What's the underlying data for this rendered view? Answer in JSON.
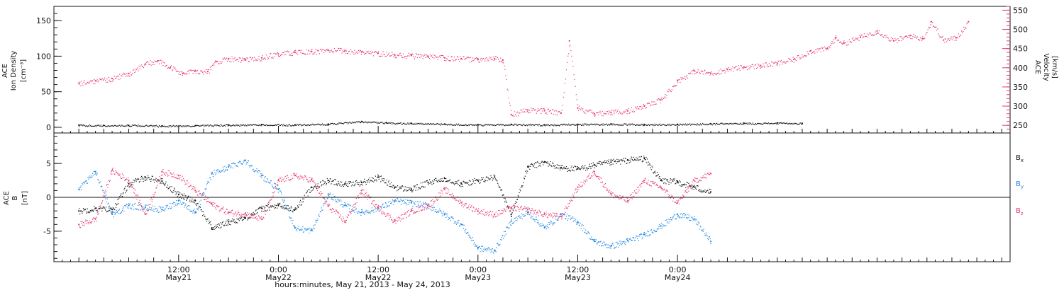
{
  "colors": {
    "black": "#111111",
    "pink": "#e8396c",
    "blue": "#1f86e0",
    "frame": "#111111"
  },
  "chart_data": [
    {
      "type": "scatter",
      "title": "",
      "ylabel_lines": [
        "ACE",
        "Ion Density",
        "[cm⁻³]"
      ],
      "y2label_lines": [
        "ACE",
        "Velocity",
        "[km/s]"
      ],
      "ylim": [
        -8,
        170
      ],
      "y_ticks": [
        0,
        50,
        100,
        150
      ],
      "y2lim": [
        230,
        560
      ],
      "y2_ticks": [
        250,
        300,
        350,
        400,
        450,
        500,
        550
      ],
      "xlim_hours": [
        -3,
        112
      ],
      "grid": false,
      "series": [
        {
          "name": "",
          "axis": "left",
          "color_key": "black",
          "points": [
            [
              0,
              3
            ],
            [
              3,
              2.5
            ],
            [
              6,
              2.8
            ],
            [
              10,
              2
            ],
            [
              14,
              2.4
            ],
            [
              18,
              3.2
            ],
            [
              22,
              3.8
            ],
            [
              26,
              3.5
            ],
            [
              30,
              4.6
            ],
            [
              34,
              8
            ],
            [
              37,
              6.5
            ],
            [
              40,
              5.5
            ],
            [
              44,
              4.6
            ],
            [
              48,
              3.5
            ],
            [
              52,
              4.2
            ],
            [
              56,
              3.6
            ],
            [
              60,
              4.2
            ],
            [
              64,
              4.6
            ],
            [
              68,
              4
            ],
            [
              72,
              4.2
            ],
            [
              76,
              5
            ],
            [
              80,
              5.6
            ],
            [
              84,
              6
            ],
            [
              87,
              5.5
            ]
          ]
        },
        {
          "name": "",
          "axis": "right",
          "color_key": "pink",
          "points": [
            [
              0,
              360
            ],
            [
              2,
              366
            ],
            [
              4,
              372
            ],
            [
              6,
              385
            ],
            [
              8,
              410
            ],
            [
              9.5,
              418
            ],
            [
              11,
              400
            ],
            [
              12.5,
              385
            ],
            [
              14,
              392
            ],
            [
              15.5,
              390
            ],
            [
              16.5,
              416
            ],
            [
              18,
              424
            ],
            [
              20,
              420
            ],
            [
              22,
              426
            ],
            [
              24,
              436
            ],
            [
              26,
              440
            ],
            [
              28,
              442
            ],
            [
              30,
              446
            ],
            [
              32,
              444
            ],
            [
              34,
              441
            ],
            [
              36,
              438
            ],
            [
              38,
              433
            ],
            [
              40,
              432
            ],
            [
              42,
              429
            ],
            [
              44,
              426
            ],
            [
              46,
              424
            ],
            [
              48,
              421
            ],
            [
              50,
              424
            ],
            [
              51,
              420
            ],
            [
              52,
              278
            ],
            [
              54,
              290
            ],
            [
              56,
              288
            ],
            [
              58,
              282
            ],
            [
              59,
              470
            ],
            [
              60,
              295
            ],
            [
              62,
              280
            ],
            [
              64,
              284
            ],
            [
              66,
              288
            ],
            [
              68,
              300
            ],
            [
              70,
              316
            ],
            [
              72,
              366
            ],
            [
              74,
              392
            ],
            [
              76,
              386
            ],
            [
              78,
              396
            ],
            [
              80,
              402
            ],
            [
              82,
              406
            ],
            [
              84,
              412
            ],
            [
              86,
              422
            ],
            [
              88,
              444
            ],
            [
              90,
              450
            ],
            [
              91,
              478
            ],
            [
              92,
              464
            ],
            [
              94,
              480
            ],
            [
              96,
              496
            ],
            [
              98,
              470
            ],
            [
              100,
              484
            ],
            [
              101.5,
              476
            ],
            [
              102.5,
              520
            ],
            [
              104,
              472
            ],
            [
              105.5,
              478
            ],
            [
              107,
              520
            ]
          ]
        }
      ]
    },
    {
      "type": "scatter",
      "title": "",
      "ylabel_lines": [
        "ACE",
        "B",
        "[nT]"
      ],
      "ylim": [
        -9.5,
        9.5
      ],
      "y_ticks": [
        -5,
        0,
        5
      ],
      "xlim_hours": [
        -3,
        112
      ],
      "grid": false,
      "zero_line": true,
      "xlabel": "hours:minutes, May 21, 2013 - May 24, 2013",
      "x_ticks": [
        {
          "hour": 12,
          "label": "12:00",
          "date": "May21"
        },
        {
          "hour": 24,
          "label": "0:00",
          "date": "May22"
        },
        {
          "hour": 36,
          "label": "12:00",
          "date": "May22"
        },
        {
          "hour": 48,
          "label": "0:00",
          "date": "May23"
        },
        {
          "hour": 60,
          "label": "12:00",
          "date": "May23"
        },
        {
          "hour": 72,
          "label": "0:00",
          "date": "May24"
        }
      ],
      "series": [
        {
          "name": "Bx",
          "sub": "x",
          "color_key": "black",
          "points": [
            [
              0,
              -2
            ],
            [
              2,
              -1.6
            ],
            [
              4,
              -1.8
            ],
            [
              6,
              2
            ],
            [
              8,
              3
            ],
            [
              10,
              2.4
            ],
            [
              12,
              0.4
            ],
            [
              14,
              -0.5
            ],
            [
              16,
              -4.5
            ],
            [
              18,
              -3.6
            ],
            [
              20,
              -3
            ],
            [
              22,
              -1.6
            ],
            [
              24,
              -1.2
            ],
            [
              26,
              -1.8
            ],
            [
              28,
              1.5
            ],
            [
              30,
              2.5
            ],
            [
              32,
              2
            ],
            [
              34,
              2.2
            ],
            [
              36,
              3
            ],
            [
              38,
              1.5
            ],
            [
              40,
              1.2
            ],
            [
              42,
              2.2
            ],
            [
              44,
              2.8
            ],
            [
              46,
              2
            ],
            [
              48,
              2.5
            ],
            [
              50,
              3
            ],
            [
              52,
              -2.5
            ],
            [
              54,
              4.5
            ],
            [
              56,
              5.2
            ],
            [
              58,
              4.4
            ],
            [
              60,
              4.2
            ],
            [
              62,
              4.8
            ],
            [
              64,
              5.2
            ],
            [
              66,
              5.5
            ],
            [
              68,
              5.8
            ],
            [
              70,
              2.5
            ],
            [
              72,
              2.3
            ],
            [
              74,
              1.5
            ],
            [
              76,
              0.8
            ]
          ]
        },
        {
          "name": "By",
          "sub": "y",
          "color_key": "blue",
          "points": [
            [
              0,
              1.2
            ],
            [
              2,
              3.8
            ],
            [
              4,
              -2.5
            ],
            [
              6,
              -1.2
            ],
            [
              8,
              -1.5
            ],
            [
              10,
              -1.8
            ],
            [
              12,
              -0.5
            ],
            [
              14,
              -2.2
            ],
            [
              16,
              3.5
            ],
            [
              18,
              4.5
            ],
            [
              20,
              5.5
            ],
            [
              22,
              3.2
            ],
            [
              24,
              1.2
            ],
            [
              26,
              -4.5
            ],
            [
              28,
              -4.9
            ],
            [
              30,
              0.5
            ],
            [
              32,
              -1.2
            ],
            [
              34,
              -2.2
            ],
            [
              36,
              -1.6
            ],
            [
              38,
              -0.5
            ],
            [
              40,
              -0.8
            ],
            [
              42,
              -1.2
            ],
            [
              44,
              -2.5
            ],
            [
              46,
              -4
            ],
            [
              48,
              -7.5
            ],
            [
              50,
              -7.8
            ],
            [
              52,
              -3.5
            ],
            [
              54,
              -2.2
            ],
            [
              56,
              -4.5
            ],
            [
              58,
              -2.5
            ],
            [
              60,
              -3.6
            ],
            [
              62,
              -6.5
            ],
            [
              64,
              -7.2
            ],
            [
              66,
              -6.4
            ],
            [
              68,
              -5.5
            ],
            [
              70,
              -4.2
            ],
            [
              72,
              -2.5
            ],
            [
              74,
              -3.2
            ],
            [
              76,
              -6.5
            ]
          ]
        },
        {
          "name": "Bz",
          "sub": "z",
          "color_key": "pink",
          "points": [
            [
              0,
              -4
            ],
            [
              2,
              -3.2
            ],
            [
              4,
              4
            ],
            [
              6,
              2.5
            ],
            [
              8,
              -2.5
            ],
            [
              10,
              3.8
            ],
            [
              12,
              3.2
            ],
            [
              14,
              1
            ],
            [
              16,
              -1
            ],
            [
              18,
              -2.2
            ],
            [
              20,
              -2.4
            ],
            [
              22,
              -3.2
            ],
            [
              24,
              2.5
            ],
            [
              26,
              3.2
            ],
            [
              28,
              2.6
            ],
            [
              30,
              -1.3
            ],
            [
              32,
              -3.5
            ],
            [
              34,
              1
            ],
            [
              36,
              -1.5
            ],
            [
              38,
              -3.5
            ],
            [
              40,
              -2
            ],
            [
              42,
              -1.2
            ],
            [
              44,
              1.2
            ],
            [
              46,
              -0.8
            ],
            [
              48,
              -2
            ],
            [
              50,
              -2.5
            ],
            [
              52,
              -1.5
            ],
            [
              54,
              -1.8
            ],
            [
              56,
              -2.5
            ],
            [
              58,
              -2.8
            ],
            [
              60,
              1.5
            ],
            [
              62,
              3.8
            ],
            [
              64,
              0.5
            ],
            [
              66,
              -0.5
            ],
            [
              68,
              2.5
            ],
            [
              70,
              1.5
            ],
            [
              72,
              -0.8
            ],
            [
              74,
              2.5
            ],
            [
              76,
              3.5
            ]
          ]
        }
      ]
    }
  ]
}
